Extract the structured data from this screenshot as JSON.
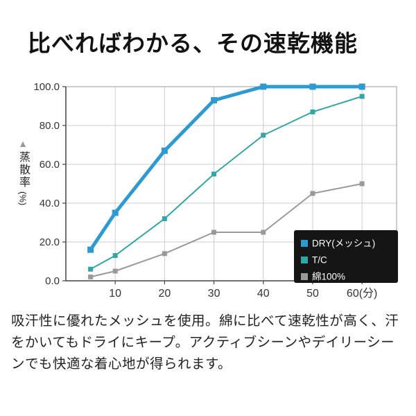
{
  "title": "比べればわかる、その速乾機能",
  "description": "吸汗性に優れたメッシュを使用。綿に比べて速乾性が高く、汗をかいてもドライにキープ。アクティブシーンやデイリーシーンでも快適な着心地が得られます。",
  "y_axis": {
    "marker": "▲",
    "label": "蒸散率",
    "unit": "(%)"
  },
  "chart_data": {
    "type": "line",
    "x": [
      5,
      10,
      20,
      30,
      40,
      50,
      60
    ],
    "x_ticks": [
      10,
      20,
      30,
      40,
      50,
      60
    ],
    "x_tick_labels": [
      "10",
      "20",
      "30",
      "40",
      "50",
      "60(分)"
    ],
    "xlim": [
      0,
      67
    ],
    "y_ticks": [
      0,
      20,
      40,
      60,
      80,
      100
    ],
    "y_tick_labels": [
      "0.0",
      "20.0",
      "40.0",
      "60.0",
      "80.0",
      "100.0"
    ],
    "ylim": [
      0,
      100
    ],
    "ylabel": "蒸散率",
    "ylabel_unit": "(%)",
    "grid": true,
    "legend_position": "lower right",
    "legend_bg": "#151515",
    "legend_text_color": "#ffffff",
    "series": [
      {
        "name": "DRY(メッシュ)",
        "color": "#2D9BD2",
        "line_width": 5,
        "marker_size": 9,
        "values": [
          16,
          35,
          67,
          93,
          100,
          100,
          100
        ]
      },
      {
        "name": "T/C",
        "color": "#30A6A6",
        "line_width": 2,
        "marker_size": 7,
        "values": [
          6,
          13,
          32,
          55,
          75,
          87,
          95
        ]
      },
      {
        "name": "綿100%",
        "color": "#999999",
        "line_width": 2,
        "marker_size": 7,
        "values": [
          2,
          5,
          14,
          25,
          25,
          45,
          50
        ]
      }
    ]
  }
}
